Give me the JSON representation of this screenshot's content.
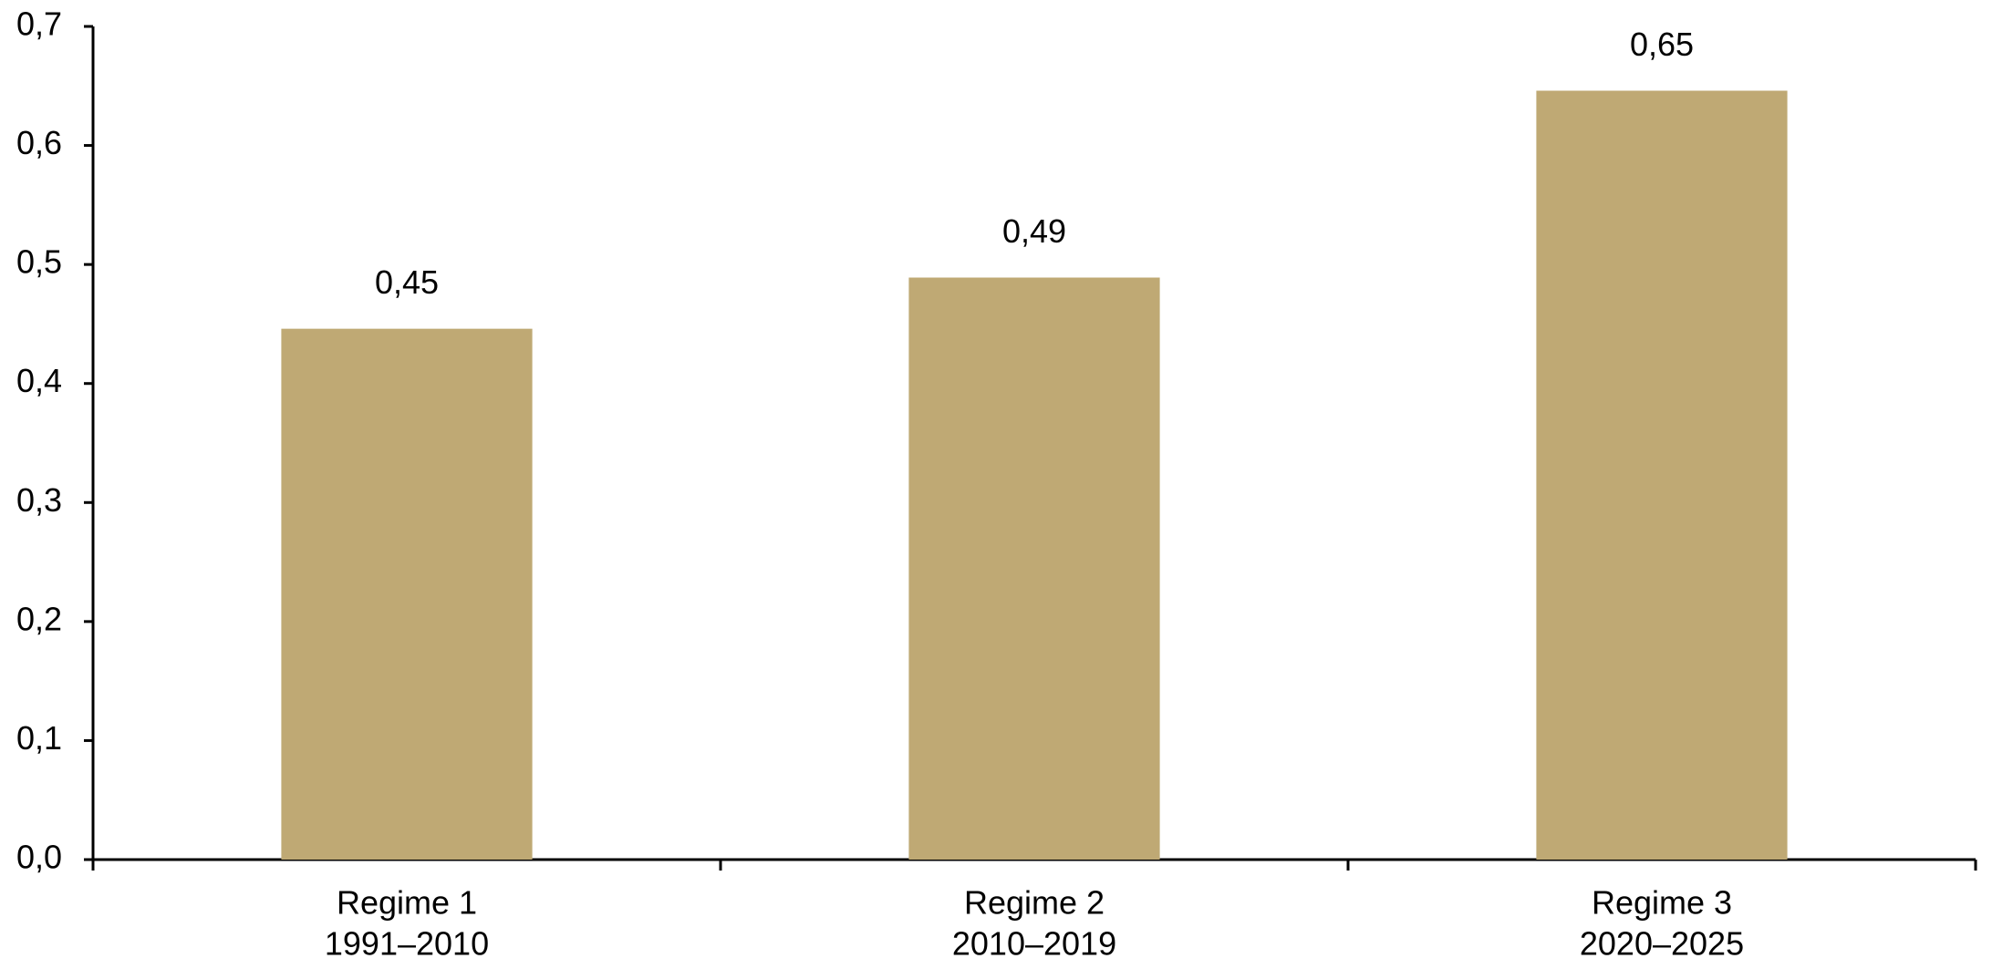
{
  "chart_data": {
    "type": "bar",
    "categories": [
      [
        "Regime 1",
        "1991–2010"
      ],
      [
        "Regime 2",
        "2010–2019"
      ],
      [
        "Regime 3",
        "2020–2025"
      ]
    ],
    "values": [
      0.446,
      0.489,
      0.646
    ],
    "value_labels": [
      "0,45",
      "0,49",
      "0,65"
    ],
    "color": "#bfa974",
    "ylim": [
      0,
      0.7
    ],
    "yticks": [
      {
        "value": 0,
        "label": "0,0"
      },
      {
        "value": 0.1,
        "label": "0,1"
      },
      {
        "value": 0.2,
        "label": "0,2"
      },
      {
        "value": 0.3,
        "label": "0,3"
      },
      {
        "value": 0.4,
        "label": "0,4"
      },
      {
        "value": 0.5,
        "label": "0,5"
      },
      {
        "value": 0.6,
        "label": "0,6"
      },
      {
        "value": 0.7,
        "label": "0,7"
      }
    ],
    "grid": false
  }
}
